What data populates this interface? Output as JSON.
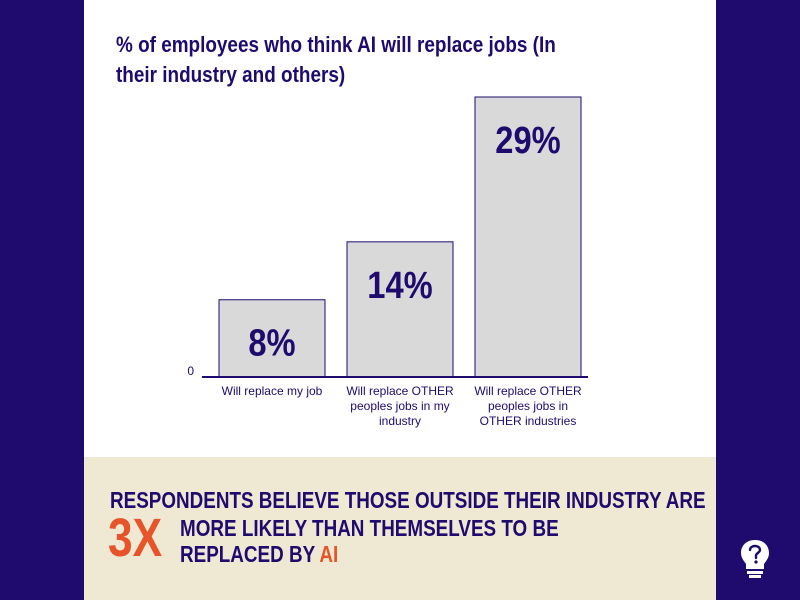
{
  "colors": {
    "background": "#1f0a6e",
    "card": "#ffffff",
    "bar_fill": "#d9d9d9",
    "bar_stroke": "#1f0a6e",
    "text_primary": "#1f0a6e",
    "accent": "#e8542a",
    "footer_bg": "#efe9d3"
  },
  "chart_data": {
    "type": "bar",
    "title": "% of employees who think AI will replace jobs (In their industry and others)",
    "categories": [
      [
        "Will replace my job"
      ],
      [
        "Will replace OTHER",
        "peoples jobs in my",
        "industry"
      ],
      [
        "Will replace OTHER",
        "peoples jobs in",
        "OTHER industries"
      ]
    ],
    "values": [
      8,
      14,
      29
    ],
    "data_labels": [
      "8%",
      "14%",
      "29%"
    ],
    "unit": "%",
    "y_tick_label": "0",
    "ylim": [
      0,
      29
    ],
    "grid": false,
    "legend": "none"
  },
  "footer": {
    "headline": "RESPONDENTS BELIEVE THOSE OUTSIDE THEIR INDUSTRY ARE",
    "multiplier": "3X",
    "line2_text": "MORE LIKELY THAN THEMSELVES TO BE",
    "line3_text": "REPLACED BY ",
    "line3_accent": "AI"
  },
  "logo": {
    "icon": "lightbulb-head-icon"
  }
}
